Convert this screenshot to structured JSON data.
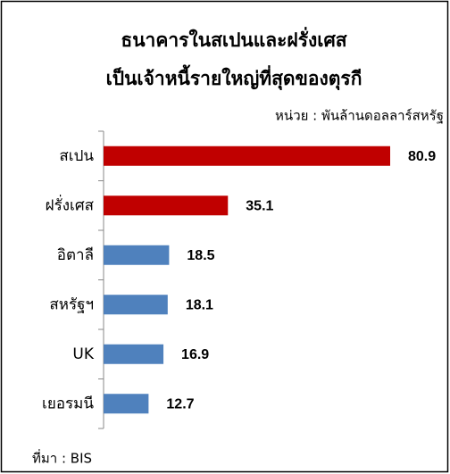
{
  "chart_data": {
    "type": "barh",
    "title": [
      "ธนาคารในสเปนและฝรั่งเศส",
      "เป็นเจ้าหนี้รายใหญ่ที่สุดของตุรกี"
    ],
    "unit": "หน่วย : พันล้านดอลลาร์สหรัฐ",
    "categories": [
      "สเปน",
      "ฝรั่งเศส",
      "อิตาลี",
      "สหรัฐฯ",
      "UK",
      "เยอรมนี"
    ],
    "values": [
      80.9,
      35.1,
      18.5,
      18.1,
      16.9,
      12.7
    ],
    "colors": [
      "#c00000",
      "#c00000",
      "#4f81bd",
      "#4f81bd",
      "#4f81bd",
      "#4f81bd"
    ],
    "source": "ที่มา : BIS"
  }
}
